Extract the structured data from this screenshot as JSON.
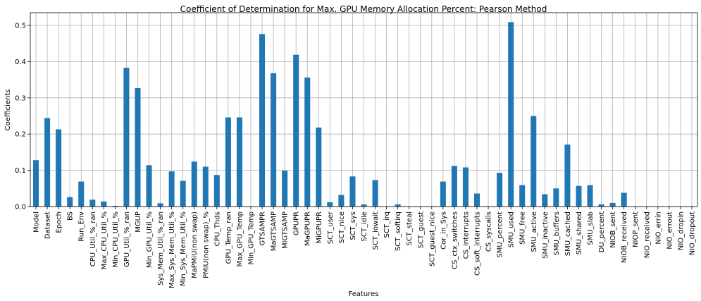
{
  "chart_data": {
    "type": "bar",
    "title": "Coefficient of Determination for Max. GPU Memory Allocation Percent: Pearson Method",
    "xlabel": "Features",
    "ylabel": "Coefficients",
    "ylim": [
      0,
      0.535
    ],
    "yticks": [
      "0.0",
      "0.1",
      "0.2",
      "0.3",
      "0.4",
      "0.5"
    ],
    "grid": true,
    "bar_color": "#1f77b4",
    "categories": [
      "Model",
      "Dataset",
      "Epoch",
      "BS",
      "Run_Env",
      "CPU_Util_%_ran",
      "Max_CPU_Util_%",
      "Min_CPU_Util_%",
      "GPU_Util_%_ran",
      "MGUP",
      "Min_GPU_Util_%",
      "Sys_Mem_Util_%_ran",
      "Max_Sys_Mem_Util_%",
      "Min_Sys_Mem_Util_%",
      "MaPMiU(non swap)",
      "PMiU(non swap)_%",
      "CPU_Thds",
      "GPU_Temp_ran",
      "Max_GPU_Temp",
      "Min_GPU_Temp",
      "GTSAMPR",
      "MaGTSAMP",
      "MiGTSAMP",
      "GPUPR",
      "MaGPUPR",
      "MiGPUPR",
      "SCT_user",
      "SCT_nice",
      "SCT_sys",
      "SCT_idle",
      "SCT_iowait",
      "SCT_irq",
      "SCT_softirq",
      "SCT_steal",
      "SCT_guest",
      "SCT_guest_nice",
      "Cor_in_Sys",
      "CS_ctx_switches",
      "CS_interrupts",
      "CS_soft_interrupts",
      "CS_syscalls",
      "SMU_percent",
      "SMU_used",
      "SMU_free",
      "SMU_active",
      "SMU_inactive",
      "SMU_buffers",
      "SMU_cached",
      "SMU_shared",
      "SMU_slab",
      "DU_percent",
      "NIOB_sent",
      "NIOB_received",
      "NIOP_sent",
      "NIO_received",
      "NIO_errin",
      "NIO_errout",
      "NIO_dropin",
      "NIO_dropout"
    ],
    "values": [
      0.128,
      0.244,
      0.213,
      0.026,
      0.069,
      0.019,
      0.014,
      0.002,
      0.383,
      0.327,
      0.114,
      0.009,
      0.097,
      0.071,
      0.124,
      0.11,
      0.087,
      0.246,
      0.246,
      0.0,
      0.476,
      0.368,
      0.099,
      0.419,
      0.356,
      0.218,
      0.012,
      0.032,
      0.083,
      0.006,
      0.073,
      0.0,
      0.006,
      0.0,
      0.0,
      0.0,
      0.069,
      0.112,
      0.108,
      0.036,
      0.0,
      0.093,
      0.509,
      0.059,
      0.25,
      0.034,
      0.05,
      0.171,
      0.057,
      0.059,
      0.006,
      0.01,
      0.038,
      0.0,
      0.0,
      0.0,
      0.0,
      0.0,
      0.0
    ]
  }
}
